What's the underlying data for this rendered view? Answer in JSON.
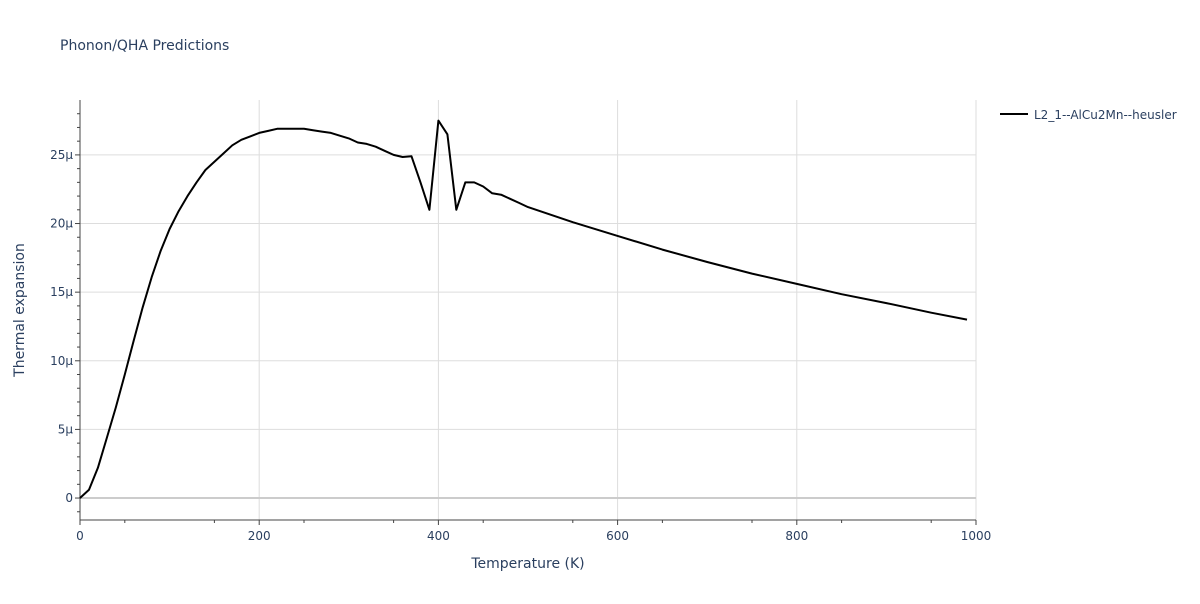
{
  "chart_data": {
    "type": "line",
    "title": "Phonon/QHA Predictions",
    "xlabel": "Temperature (K)",
    "ylabel": "Thermal expansion",
    "xlim": [
      0,
      1000
    ],
    "ylim": [
      -1.6,
      29
    ],
    "x_ticks": [
      0,
      200,
      400,
      600,
      800,
      1000
    ],
    "x_tick_labels": [
      "0",
      "200",
      "400",
      "600",
      "800",
      "1000"
    ],
    "y_ticks": [
      0,
      5,
      10,
      15,
      20,
      25
    ],
    "y_tick_labels": [
      "0",
      "5μ",
      "10μ",
      "15μ",
      "20μ",
      "25μ"
    ],
    "y_unit": "1e-6",
    "grid": true,
    "legend_position": "top-right",
    "line_color": "#000000",
    "series": [
      {
        "name": "L2_1--AlCu2Mn--heusler",
        "x": [
          0,
          10,
          20,
          30,
          40,
          50,
          60,
          70,
          80,
          90,
          100,
          110,
          120,
          130,
          140,
          150,
          160,
          170,
          180,
          190,
          200,
          210,
          220,
          230,
          240,
          250,
          260,
          270,
          280,
          290,
          300,
          310,
          320,
          330,
          340,
          350,
          360,
          370,
          380,
          390,
          400,
          410,
          420,
          430,
          440,
          450,
          460,
          470,
          480,
          490,
          500,
          550,
          600,
          650,
          700,
          750,
          800,
          850,
          900,
          950,
          990
        ],
        "y": [
          0,
          0.6,
          2.2,
          4.4,
          6.6,
          9.0,
          11.5,
          13.9,
          16.1,
          18.0,
          19.6,
          20.9,
          22.0,
          23.0,
          23.9,
          24.5,
          25.1,
          25.7,
          26.1,
          26.35,
          26.6,
          26.75,
          26.9,
          26.9,
          26.9,
          26.9,
          26.8,
          26.7,
          26.6,
          26.4,
          26.2,
          25.9,
          25.8,
          25.6,
          25.3,
          25.0,
          24.85,
          24.9,
          23.0,
          21.0,
          27.5,
          26.5,
          21.0,
          23.0,
          23.0,
          22.7,
          22.2,
          22.1,
          21.8,
          21.5,
          21.2,
          20.1,
          19.1,
          18.1,
          17.2,
          16.35,
          15.6,
          14.85,
          14.2,
          13.5,
          13.0
        ]
      }
    ]
  }
}
